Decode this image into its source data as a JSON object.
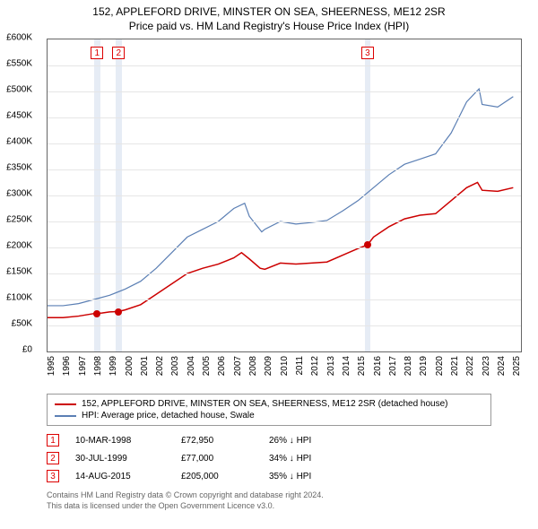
{
  "title_line1": "152, APPLEFORD DRIVE, MINSTER ON SEA, SHEERNESS, ME12 2SR",
  "title_line2": "Price paid vs. HM Land Registry's House Price Index (HPI)",
  "chart": {
    "type": "line",
    "background_color": "#ffffff",
    "grid_color": "#e6e6e6",
    "border_color": "#666666",
    "marker_band_color": "#e6ecf5",
    "ylim": [
      0,
      600000
    ],
    "ytick_step": 50000,
    "yticks": [
      "£0",
      "£50K",
      "£100K",
      "£150K",
      "£200K",
      "£250K",
      "£300K",
      "£350K",
      "£400K",
      "£450K",
      "£500K",
      "£550K",
      "£600K"
    ],
    "xlim": [
      1995,
      2025.5
    ],
    "xticks": [
      1995,
      1996,
      1997,
      1998,
      1999,
      2000,
      2001,
      2002,
      2003,
      2004,
      2005,
      2006,
      2007,
      2008,
      2009,
      2010,
      2011,
      2012,
      2013,
      2014,
      2015,
      2016,
      2017,
      2018,
      2019,
      2020,
      2021,
      2022,
      2023,
      2024,
      2025
    ],
    "axis_fontsize": 10,
    "title_fontsize": 12,
    "series": {
      "property": {
        "label": "152, APPLEFORD DRIVE, MINSTER ON SEA, SHEERNESS, ME12 2SR (detached house)",
        "color": "#cc0000",
        "line_width": 1.5,
        "points": [
          [
            1995,
            65000
          ],
          [
            1996,
            65000
          ],
          [
            1997,
            68000
          ],
          [
            1998,
            72950
          ],
          [
            1998.5,
            74000
          ],
          [
            1999,
            76000
          ],
          [
            1999.58,
            77000
          ],
          [
            2000,
            80000
          ],
          [
            2001,
            90000
          ],
          [
            2002,
            110000
          ],
          [
            2003,
            130000
          ],
          [
            2004,
            150000
          ],
          [
            2005,
            160000
          ],
          [
            2006,
            168000
          ],
          [
            2007,
            180000
          ],
          [
            2007.5,
            190000
          ],
          [
            2008,
            178000
          ],
          [
            2008.7,
            160000
          ],
          [
            2009,
            158000
          ],
          [
            2010,
            170000
          ],
          [
            2011,
            168000
          ],
          [
            2012,
            170000
          ],
          [
            2013,
            172000
          ],
          [
            2014,
            185000
          ],
          [
            2015,
            198000
          ],
          [
            2015.62,
            205000
          ],
          [
            2016,
            220000
          ],
          [
            2017,
            240000
          ],
          [
            2018,
            255000
          ],
          [
            2019,
            262000
          ],
          [
            2020,
            265000
          ],
          [
            2021,
            290000
          ],
          [
            2022,
            315000
          ],
          [
            2022.7,
            325000
          ],
          [
            2023,
            310000
          ],
          [
            2024,
            308000
          ],
          [
            2025,
            315000
          ]
        ]
      },
      "hpi": {
        "label": "HPI: Average price, detached house, Swale",
        "color": "#5b7fb4",
        "line_width": 1.2,
        "points": [
          [
            1995,
            88000
          ],
          [
            1996,
            88000
          ],
          [
            1997,
            92000
          ],
          [
            1998,
            100000
          ],
          [
            1999,
            108000
          ],
          [
            2000,
            120000
          ],
          [
            2001,
            135000
          ],
          [
            2002,
            160000
          ],
          [
            2003,
            190000
          ],
          [
            2004,
            220000
          ],
          [
            2005,
            235000
          ],
          [
            2006,
            250000
          ],
          [
            2007,
            275000
          ],
          [
            2007.7,
            285000
          ],
          [
            2008,
            260000
          ],
          [
            2008.8,
            230000
          ],
          [
            2009,
            235000
          ],
          [
            2010,
            250000
          ],
          [
            2011,
            245000
          ],
          [
            2012,
            248000
          ],
          [
            2013,
            252000
          ],
          [
            2014,
            270000
          ],
          [
            2015,
            290000
          ],
          [
            2016,
            315000
          ],
          [
            2017,
            340000
          ],
          [
            2018,
            360000
          ],
          [
            2019,
            370000
          ],
          [
            2020,
            380000
          ],
          [
            2021,
            420000
          ],
          [
            2022,
            480000
          ],
          [
            2022.8,
            505000
          ],
          [
            2023,
            475000
          ],
          [
            2024,
            470000
          ],
          [
            2025,
            490000
          ]
        ]
      }
    },
    "sale_markers": [
      {
        "n": "1",
        "x": 1998.19,
        "band_width": 0.4
      },
      {
        "n": "2",
        "x": 1999.58,
        "band_width": 0.4
      },
      {
        "n": "3",
        "x": 2015.62,
        "band_width": 0.4
      }
    ],
    "sale_points": [
      {
        "x": 1998.19,
        "y": 72950
      },
      {
        "x": 1999.58,
        "y": 77000
      },
      {
        "x": 2015.62,
        "y": 205000
      }
    ]
  },
  "legend": {
    "series1_color": "#cc0000",
    "series1_label": "152, APPLEFORD DRIVE, MINSTER ON SEA, SHEERNESS, ME12 2SR (detached house)",
    "series2_color": "#5b7fb4",
    "series2_label": "HPI: Average price, detached house, Swale"
  },
  "sales": [
    {
      "n": "1",
      "date": "10-MAR-1998",
      "price": "£72,950",
      "hpi": "26% ↓ HPI"
    },
    {
      "n": "2",
      "date": "30-JUL-1999",
      "price": "£77,000",
      "hpi": "34% ↓ HPI"
    },
    {
      "n": "3",
      "date": "14-AUG-2015",
      "price": "£205,000",
      "hpi": "35% ↓ HPI"
    }
  ],
  "footer_line1": "Contains HM Land Registry data © Crown copyright and database right 2024.",
  "footer_line2": "This data is licensed under the Open Government Licence v3.0."
}
